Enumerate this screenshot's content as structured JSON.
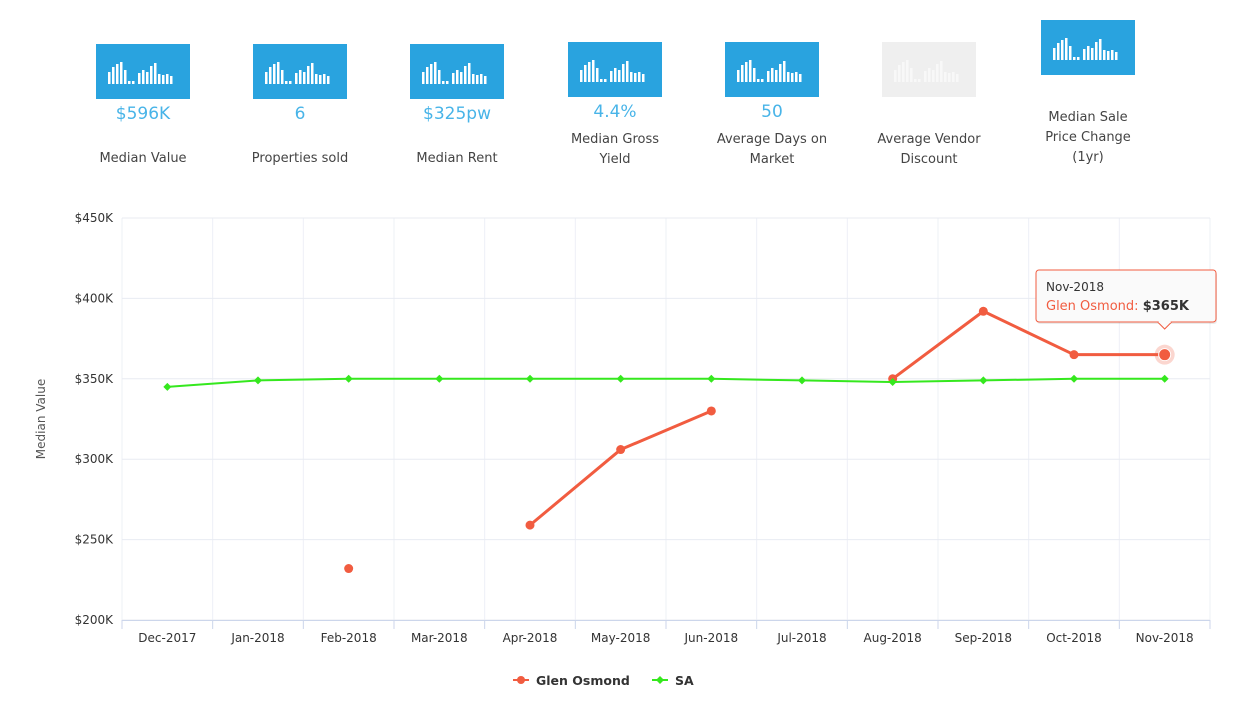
{
  "stats": [
    {
      "value": "$596K",
      "label": "Median Value",
      "active": true
    },
    {
      "value": "6",
      "label": "Properties sold",
      "active": true
    },
    {
      "value": "$325pw",
      "label": "Median Rent",
      "active": true
    },
    {
      "value": "4.4%",
      "label": "Median Gross Yield",
      "active": true
    },
    {
      "value": "50",
      "label": "Average Days on Market",
      "active": true
    },
    {
      "value": "",
      "label": "Average Vendor Discount",
      "active": false
    },
    {
      "value": "",
      "label": "Median Sale Price Change (1yr)",
      "active": true
    }
  ],
  "colors": {
    "accent": "#29a3df",
    "value_text": "#48b4e8",
    "glen": "#f15c40",
    "sa": "#35e81e"
  },
  "chart_data": {
    "type": "line",
    "ylabel": "Median Value",
    "ylim": [
      200,
      450
    ],
    "yticks": [
      200,
      250,
      300,
      350,
      400,
      450
    ],
    "ytick_labels": [
      "$200K",
      "$250K",
      "$300K",
      "$350K",
      "$400K",
      "$450K"
    ],
    "categories": [
      "Dec-2017",
      "Jan-2018",
      "Feb-2018",
      "Mar-2018",
      "Apr-2018",
      "May-2018",
      "Jun-2018",
      "Jul-2018",
      "Aug-2018",
      "Sep-2018",
      "Oct-2018",
      "Nov-2018"
    ],
    "series": [
      {
        "name": "Glen Osmond",
        "color": "#f15c40",
        "marker": "circle",
        "values": [
          null,
          null,
          232,
          null,
          259,
          306,
          330,
          null,
          350,
          392,
          365,
          365
        ]
      },
      {
        "name": "SA",
        "color": "#35e81e",
        "marker": "diamond",
        "values": [
          345,
          349,
          350,
          350,
          350,
          350,
          350,
          349,
          348,
          349,
          350,
          350
        ]
      }
    ],
    "tooltip": {
      "category": "Nov-2018",
      "series": "Glen Osmond",
      "value": "$365K"
    }
  }
}
